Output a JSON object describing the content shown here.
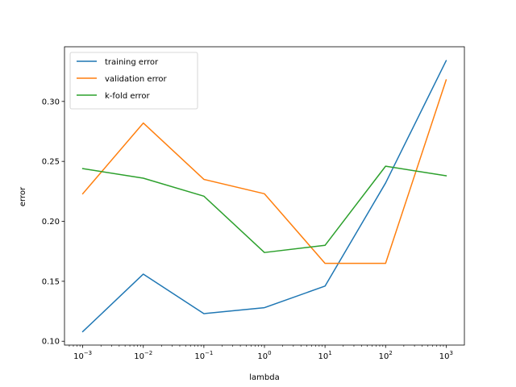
{
  "chart_data": {
    "type": "line",
    "xlabel": "lambda",
    "ylabel": "error",
    "xscale": "log",
    "x": [
      0.001,
      0.01,
      0.1,
      1,
      10,
      100,
      1000
    ],
    "xlim": [
      0.0005,
      2000
    ],
    "ylim": [
      0.0968,
      0.3456
    ],
    "xticks": [
      {
        "value": 0.001,
        "base": "10",
        "exp": "−3"
      },
      {
        "value": 0.01,
        "base": "10",
        "exp": "−2"
      },
      {
        "value": 0.1,
        "base": "10",
        "exp": "−1"
      },
      {
        "value": 1,
        "base": "10",
        "exp": "0"
      },
      {
        "value": 10,
        "base": "10",
        "exp": "1"
      },
      {
        "value": 100,
        "base": "10",
        "exp": "2"
      },
      {
        "value": 1000,
        "base": "10",
        "exp": "3"
      }
    ],
    "yticks": [
      {
        "value": 0.1,
        "label": "0.10"
      },
      {
        "value": 0.15,
        "label": "0.15"
      },
      {
        "value": 0.2,
        "label": "0.20"
      },
      {
        "value": 0.25,
        "label": "0.25"
      },
      {
        "value": 0.3,
        "label": "0.30"
      }
    ],
    "legend_position": "top-left",
    "grid": false,
    "series": [
      {
        "name": "training error",
        "color": "#1f77b4",
        "values": [
          0.108,
          0.156,
          0.123,
          0.128,
          0.146,
          0.232,
          0.334
        ]
      },
      {
        "name": "validation error",
        "color": "#ff7f0e",
        "values": [
          0.223,
          0.282,
          0.235,
          0.223,
          0.165,
          0.165,
          0.318
        ]
      },
      {
        "name": "k-fold error",
        "color": "#2ca02c",
        "values": [
          0.244,
          0.236,
          0.221,
          0.174,
          0.18,
          0.246,
          0.238
        ]
      }
    ]
  }
}
